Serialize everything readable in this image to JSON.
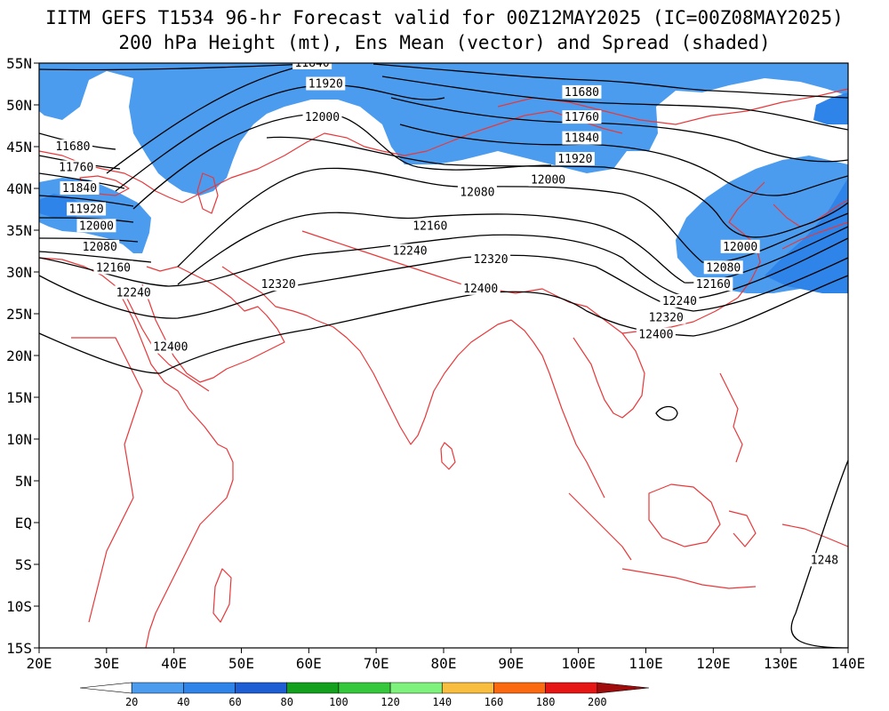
{
  "title": {
    "line1": "IITM GEFS T1534 96-hr Forecast valid for 00Z12MAY2025 (IC=00Z08MAY2025)",
    "line2": "200 hPa Height (mt), Ens Mean (vector) and Spread (shaded)"
  },
  "axes": {
    "lat_labels": [
      "55N",
      "50N",
      "45N",
      "40N",
      "35N",
      "30N",
      "25N",
      "20N",
      "15N",
      "10N",
      "5N",
      "EQ",
      "5S",
      "10S",
      "15S"
    ],
    "lon_labels": [
      "20E",
      "30E",
      "40E",
      "50E",
      "60E",
      "70E",
      "80E",
      "90E",
      "100E",
      "110E",
      "120E",
      "130E",
      "140E"
    ],
    "lon_range": [
      20,
      140
    ],
    "lat_range": [
      -15,
      55
    ]
  },
  "contour_labels": [
    {
      "text": "11840",
      "lon": 60.5,
      "lat": 55.0
    },
    {
      "text": "11920",
      "lon": 62.5,
      "lat": 52.5
    },
    {
      "text": "12000",
      "lon": 62.0,
      "lat": 48.5
    },
    {
      "text": "11680",
      "lon": 100.5,
      "lat": 51.5
    },
    {
      "text": "11760",
      "lon": 100.5,
      "lat": 48.5
    },
    {
      "text": "11840",
      "lon": 100.5,
      "lat": 46.0
    },
    {
      "text": "11920",
      "lon": 99.5,
      "lat": 43.5
    },
    {
      "text": "12000",
      "lon": 95.5,
      "lat": 41.0
    },
    {
      "text": "12080",
      "lon": 85.0,
      "lat": 39.5
    },
    {
      "text": "12160",
      "lon": 78.0,
      "lat": 35.5
    },
    {
      "text": "12240",
      "lon": 75.0,
      "lat": 32.5
    },
    {
      "text": "12320",
      "lon": 87.0,
      "lat": 31.5
    },
    {
      "text": "12400",
      "lon": 85.5,
      "lat": 28.0
    },
    {
      "text": "12320",
      "lon": 55.5,
      "lat": 28.5
    },
    {
      "text": "12400",
      "lon": 39.5,
      "lat": 21.0
    },
    {
      "text": "11680",
      "lon": 25.0,
      "lat": 45.0
    },
    {
      "text": "11760",
      "lon": 25.5,
      "lat": 42.5
    },
    {
      "text": "11840",
      "lon": 26.0,
      "lat": 40.0
    },
    {
      "text": "11920",
      "lon": 27.0,
      "lat": 37.5
    },
    {
      "text": "12000",
      "lon": 28.5,
      "lat": 35.5
    },
    {
      "text": "12080",
      "lon": 29.0,
      "lat": 33.0
    },
    {
      "text": "12160",
      "lon": 31.0,
      "lat": 30.5
    },
    {
      "text": "12240",
      "lon": 34.0,
      "lat": 27.5
    },
    {
      "text": "12000",
      "lon": 124.0,
      "lat": 33.0
    },
    {
      "text": "12080",
      "lon": 121.5,
      "lat": 30.5
    },
    {
      "text": "12160",
      "lon": 120.0,
      "lat": 28.5
    },
    {
      "text": "12240",
      "lon": 115.0,
      "lat": 26.5
    },
    {
      "text": "12320",
      "lon": 113.0,
      "lat": 24.5
    },
    {
      "text": "12400",
      "lon": 111.5,
      "lat": 22.5
    },
    {
      "text": "1248",
      "lon": 136.5,
      "lat": -4.5
    }
  ],
  "colorbar": {
    "ticks": [
      "20",
      "40",
      "60",
      "80",
      "100",
      "120",
      "140",
      "160",
      "180",
      "200"
    ],
    "colors": [
      "#ffffff",
      "#4b9cee",
      "#2f84e9",
      "#1e5ed4",
      "#13a01d",
      "#35c83c",
      "#7ff27d",
      "#f9bd3f",
      "#fb6a11",
      "#e51613",
      "#a00c0c"
    ]
  },
  "colors": {
    "spread_20_40": "#4b9cee",
    "spread_40_60": "#2f84e9",
    "coastline": "#e8383a",
    "contour": "#000000"
  }
}
